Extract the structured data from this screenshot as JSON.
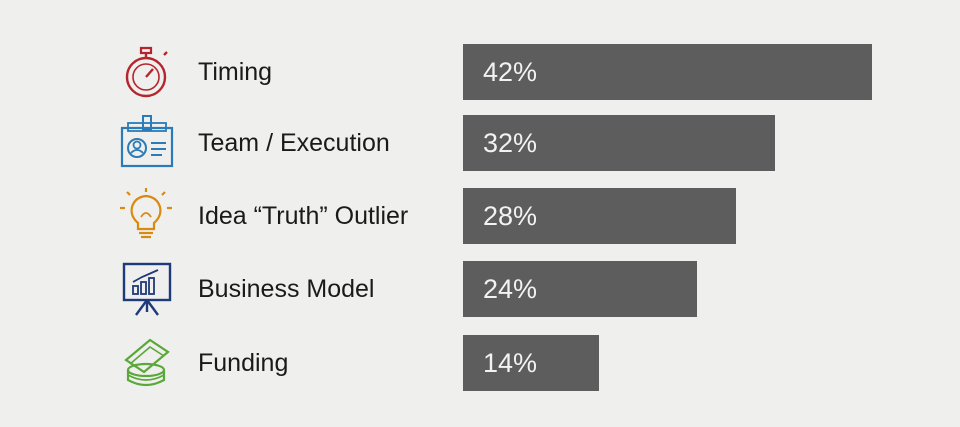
{
  "chart_data": {
    "type": "bar",
    "orientation": "horizontal",
    "title": "",
    "xlabel": "",
    "ylabel": "",
    "categories": [
      "Timing",
      "Team / Execution",
      "Idea “Truth” Outlier",
      "Business Model",
      "Funding"
    ],
    "values": [
      42,
      32,
      28,
      24,
      14
    ],
    "value_labels": [
      "42%",
      "32%",
      "28%",
      "24%",
      "14%"
    ],
    "unit": "%",
    "xlim": [
      0,
      42
    ],
    "grid": false,
    "legend": "none",
    "bar_color": "#5d5d5d",
    "icons": [
      {
        "name": "stopwatch-icon",
        "color": "#b5252e"
      },
      {
        "name": "id-badge-icon",
        "color": "#2a7bb8"
      },
      {
        "name": "lightbulb-icon",
        "color": "#d98a10"
      },
      {
        "name": "presentation-chart-icon",
        "color": "#1f3a78"
      },
      {
        "name": "money-stack-icon",
        "color": "#5aa83a"
      }
    ]
  }
}
